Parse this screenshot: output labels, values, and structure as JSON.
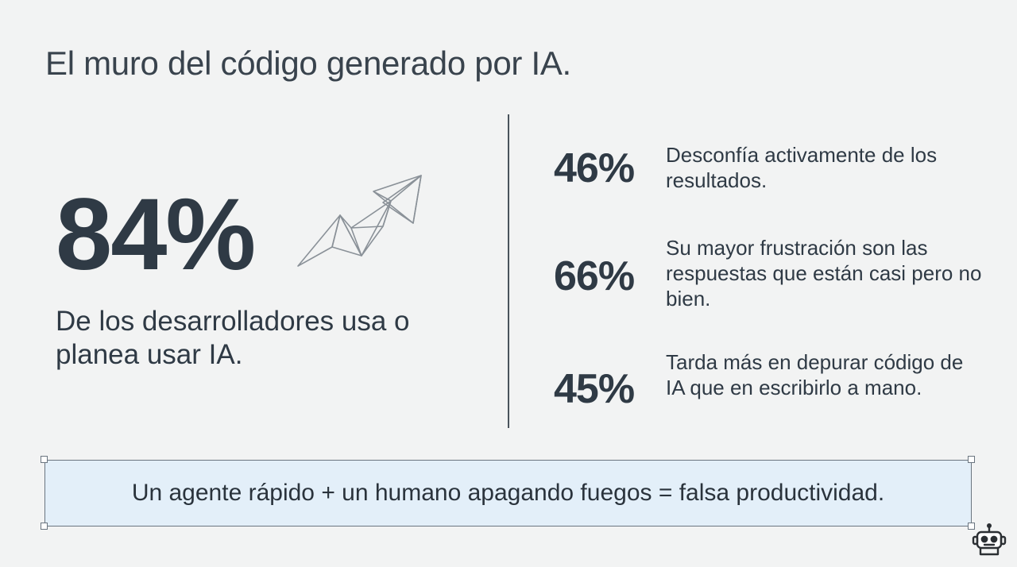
{
  "title": "El muro del código generado por IA.",
  "main_stat": {
    "value": "84%",
    "caption": "De los desarrolladores usa o planea usar IA."
  },
  "stats": [
    {
      "value": "46%",
      "text": "Desconfía activamente de los resultados."
    },
    {
      "value": "66%",
      "text": "Su mayor frustración son las respuestas que están casi pero no bien."
    },
    {
      "value": "45%",
      "text": "Tarda más en depurar código de IA que en escribirlo a mano."
    }
  ],
  "callout": "Un agente rápido + un humano apagando fuegos = falsa productividad.",
  "icons": {
    "trend": "trend-up-arrow-icon",
    "badge": "robot-icon"
  },
  "colors": {
    "text": "#2f3a45",
    "callout_bg": "#e3eff9",
    "background": "#f2f3f3"
  }
}
